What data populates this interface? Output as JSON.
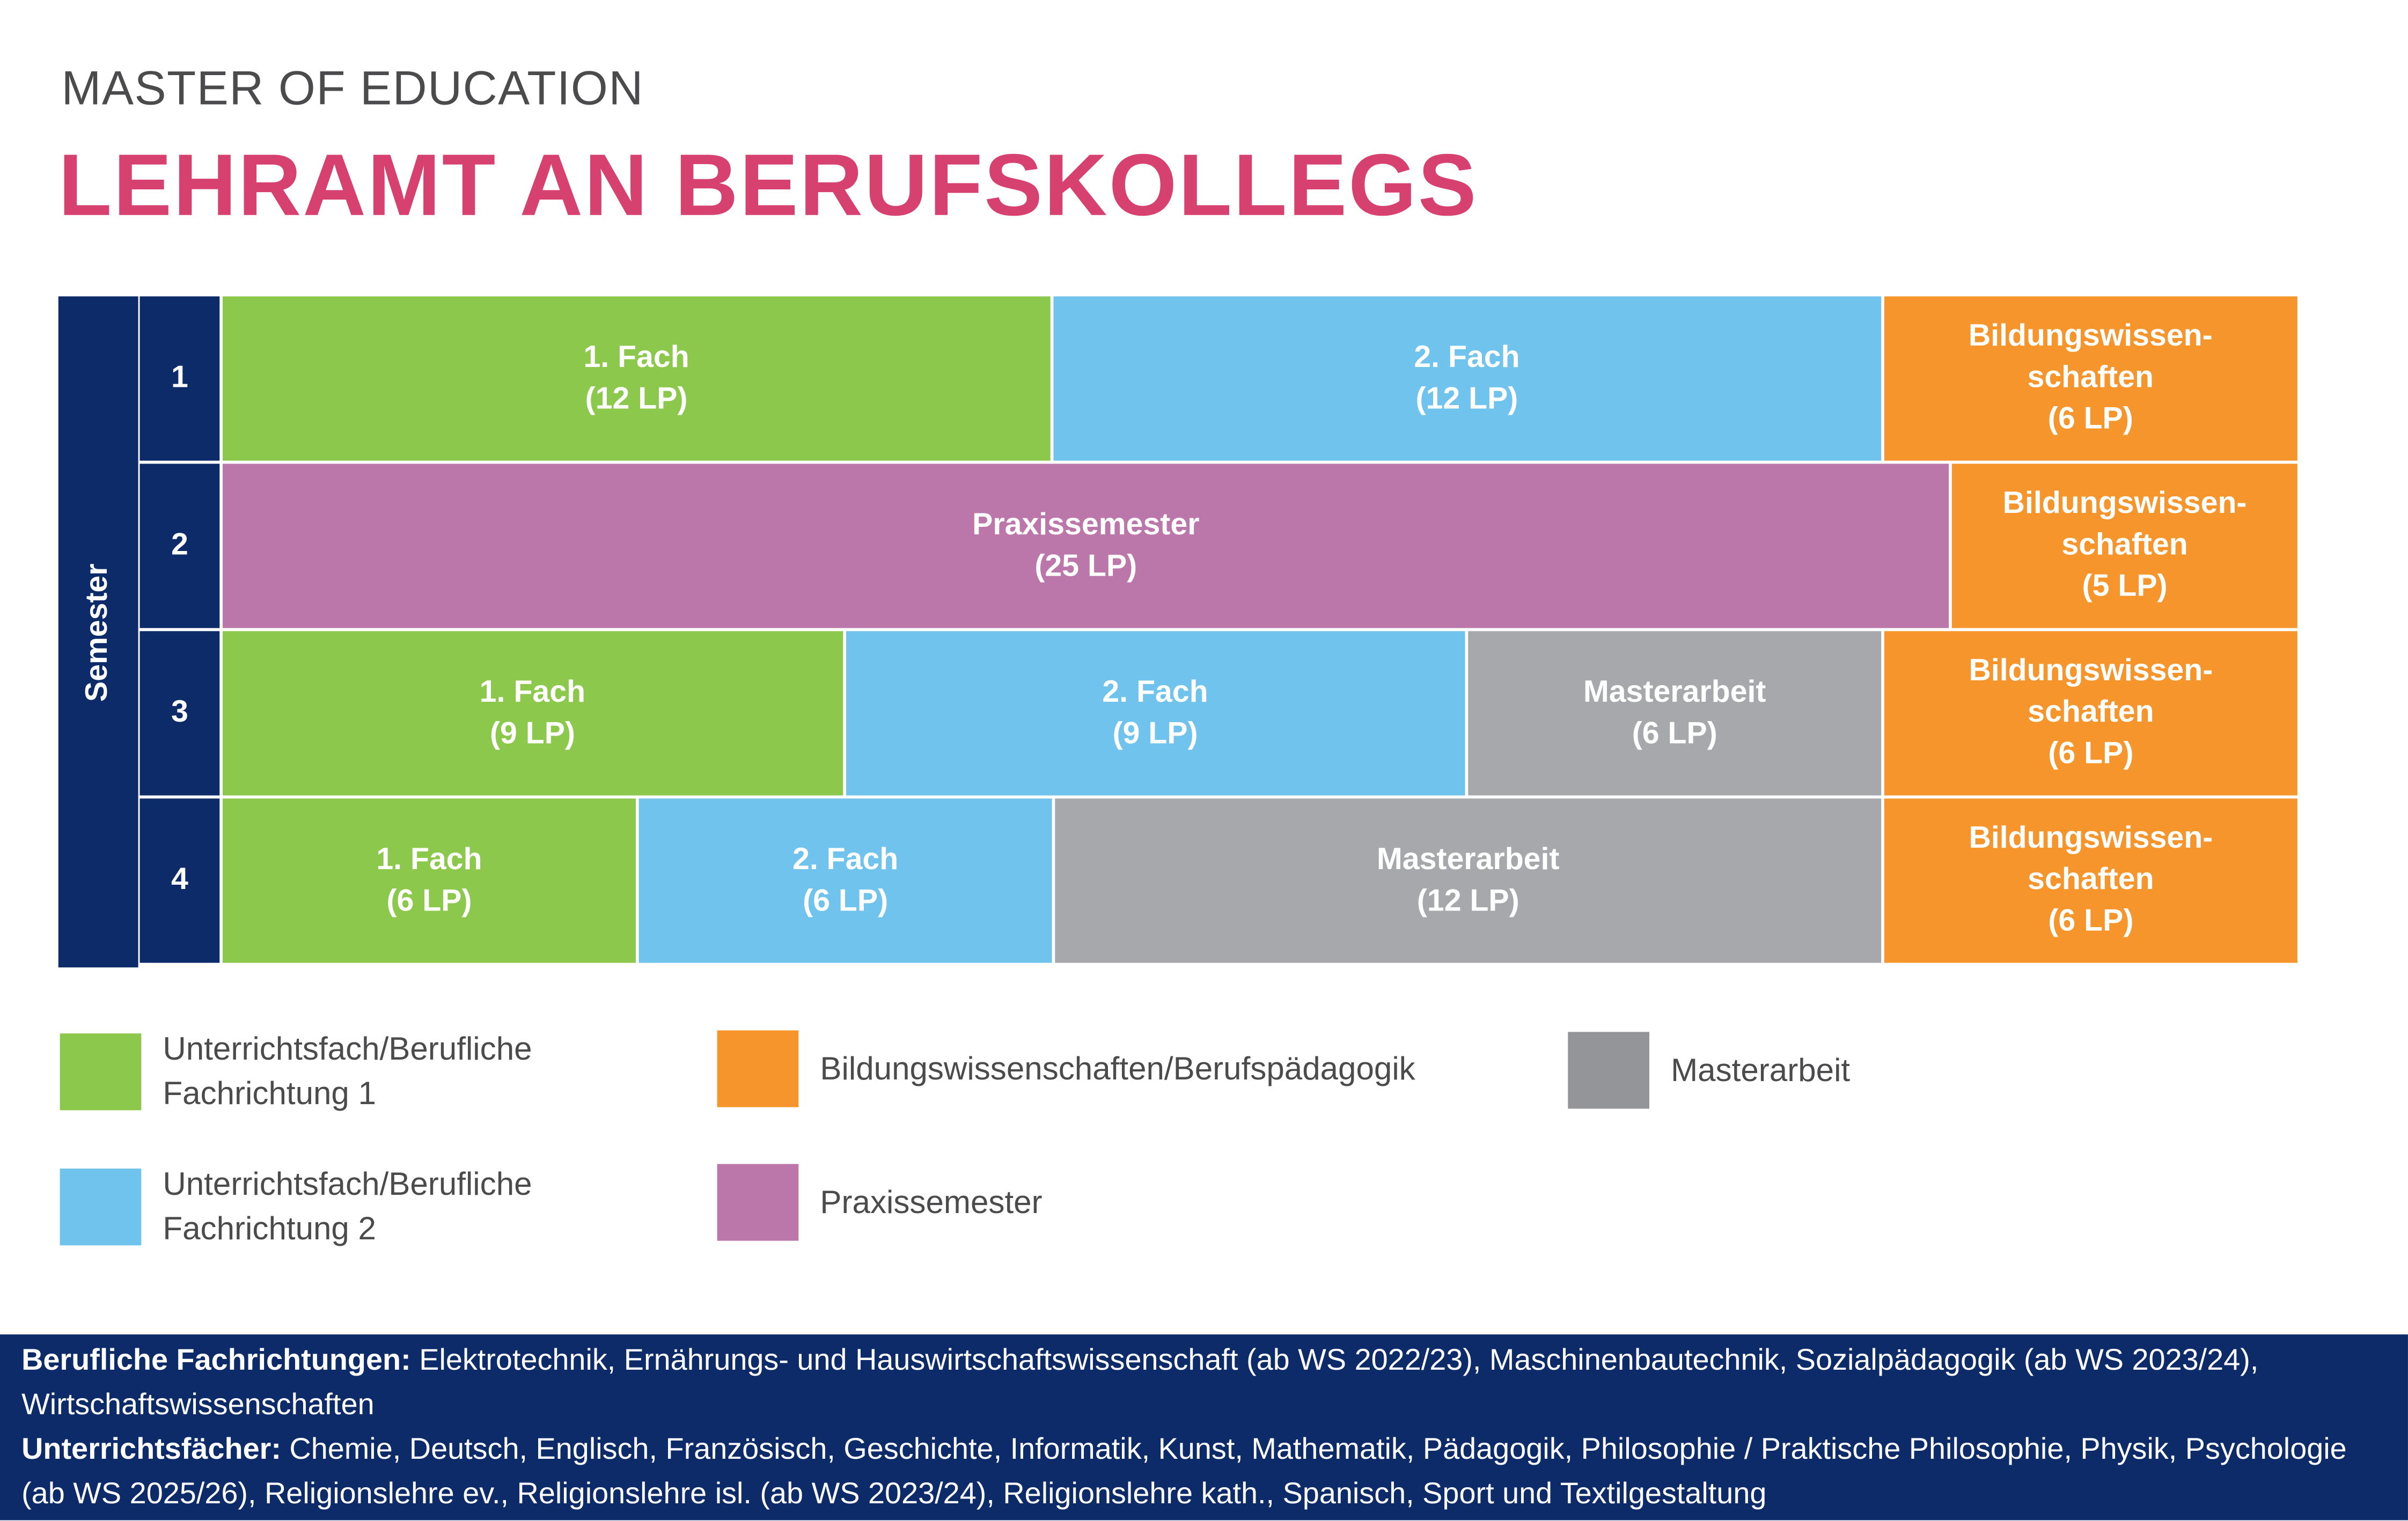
{
  "header": {
    "subtitle": "MASTER OF EDUCATION",
    "title": "LEHRAMT AN BERUFSKOLLEGS"
  },
  "colors": {
    "fach1": "#8cc84b",
    "fach2": "#6fc3ec",
    "bildung": "#f5952b",
    "praxis": "#bb77a9",
    "master": "#a7a8ab",
    "master_legend": "#939598",
    "navy": "#0e2b69",
    "accent": "#d6416f"
  },
  "semester_label": "Semester",
  "rows": [
    {
      "num": "1",
      "cells": [
        {
          "type": "fach1",
          "label": "1. Fach",
          "lp": 12,
          "lp_label": "(12 LP)"
        },
        {
          "type": "fach2",
          "label": "2. Fach",
          "lp": 12,
          "lp_label": "(12 LP)"
        },
        {
          "type": "bildung",
          "label": "Bildungswissen-",
          "label2": "schaften",
          "lp": 6,
          "lp_label": "(6 LP)"
        }
      ]
    },
    {
      "num": "2",
      "cells": [
        {
          "type": "praxis",
          "label": "Praxissemester",
          "lp": 25,
          "lp_label": "(25 LP)"
        },
        {
          "type": "bildung",
          "label": "Bildungswissen-",
          "label2": "schaften",
          "lp": 5,
          "lp_label": "(5 LP)"
        }
      ]
    },
    {
      "num": "3",
      "cells": [
        {
          "type": "fach1",
          "label": "1. Fach",
          "lp": 9,
          "lp_label": "(9 LP)"
        },
        {
          "type": "fach2",
          "label": "2. Fach",
          "lp": 9,
          "lp_label": "(9 LP)"
        },
        {
          "type": "master",
          "label": "Masterarbeit",
          "lp": 6,
          "lp_label": "(6 LP)"
        },
        {
          "type": "bildung",
          "label": "Bildungswissen-",
          "label2": "schaften",
          "lp": 6,
          "lp_label": "(6 LP)"
        }
      ]
    },
    {
      "num": "4",
      "cells": [
        {
          "type": "fach1",
          "label": "1. Fach",
          "lp": 6,
          "lp_label": "(6 LP)"
        },
        {
          "type": "fach2",
          "label": "2. Fach",
          "lp": 6,
          "lp_label": "(6 LP)"
        },
        {
          "type": "master",
          "label": "Masterarbeit",
          "lp": 12,
          "lp_label": "(12 LP)"
        },
        {
          "type": "bildung",
          "label": "Bildungswissen-",
          "label2": "schaften",
          "lp": 6,
          "lp_label": "(6 LP)"
        }
      ]
    }
  ],
  "legend": {
    "fach1": "Unterrichtsfach/Berufliche\nFachrichtung 1",
    "fach2": "Unterrichtsfach/Berufliche\nFachrichtung 2",
    "bildung": "Bildungswissenschaften/Berufspädagogik",
    "praxis": "Praxissemester",
    "master": "Masterarbeit"
  },
  "footer": {
    "berufliche_label": "Berufliche Fachrichtungen:",
    "berufliche_text": " Elektrotechnik, Ernährungs- und Hauswirtschaftswissenschaft (ab WS 2022/23), Maschinenbautechnik, Sozialpädagogik (ab WS 2023/24), Wirtschaftswissenschaften",
    "unterricht_label": "Unterrichtsfächer:",
    "unterricht_text": " Chemie, Deutsch, Englisch, Französisch, Geschichte, Informatik, Kunst, Mathematik, Pädagogik, Philosophie / Praktische Philosophie, Physik, Psychologie (ab WS 2025/26), Religionslehre ev., Religionslehre isl. (ab WS 2023/24), Religionslehre kath., Spanisch, Sport und Textilgestaltung"
  }
}
